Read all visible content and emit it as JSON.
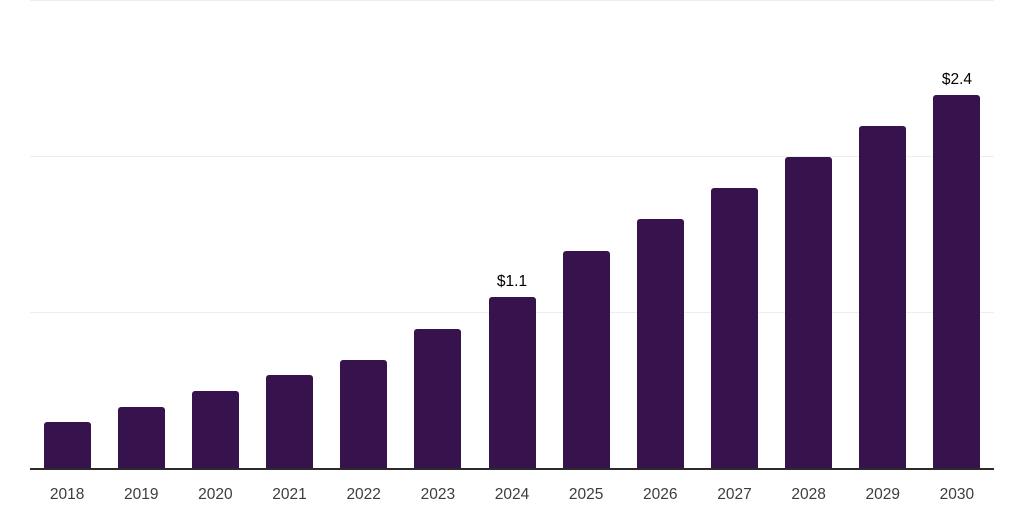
{
  "chart_data": {
    "type": "bar",
    "title": "",
    "xlabel": "",
    "ylabel": "",
    "categories": [
      "2018",
      "2019",
      "2020",
      "2021",
      "2022",
      "2023",
      "2024",
      "2025",
      "2026",
      "2027",
      "2028",
      "2029",
      "2030"
    ],
    "values": [
      0.3,
      0.4,
      0.5,
      0.6,
      0.7,
      0.9,
      1.1,
      1.4,
      1.6,
      1.8,
      2.0,
      2.2,
      2.4
    ],
    "bar_labels": {
      "2024": "$1.1",
      "2030": "$2.4"
    },
    "ylim": [
      0,
      3
    ],
    "gridline_values": [
      1,
      2,
      3
    ],
    "grid": true,
    "legend": "none",
    "colors": {
      "bar": "#36134d",
      "gridline": "#ededed",
      "axis_line": "#2b2b2b",
      "tick_label": "#3d3d3d",
      "bar_label": "#000000",
      "background": "#ffffff"
    }
  }
}
